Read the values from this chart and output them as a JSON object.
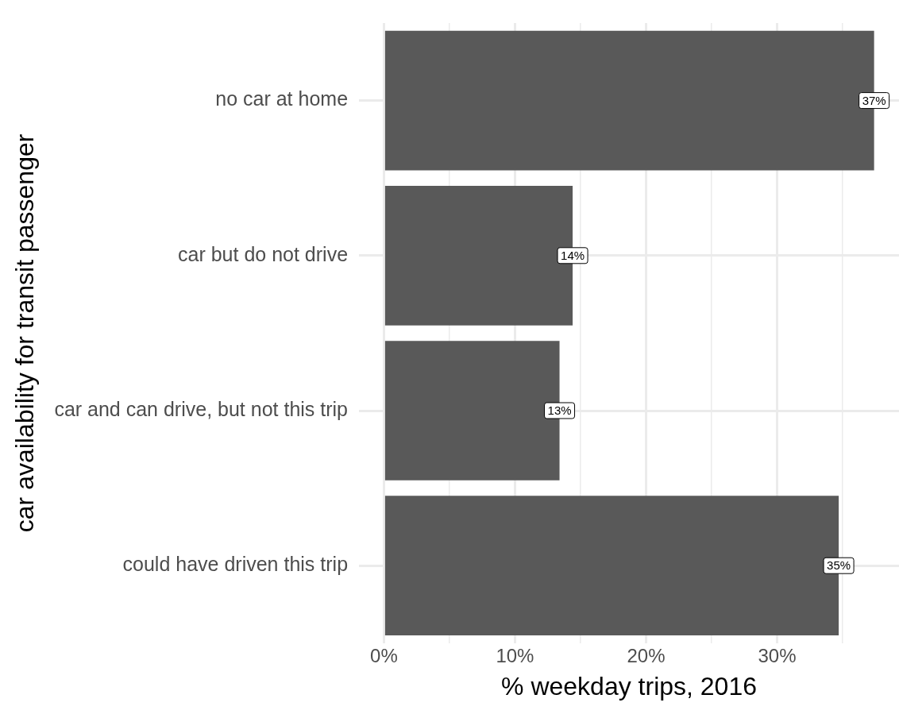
{
  "chart_data": {
    "type": "bar",
    "orientation": "horizontal",
    "xlabel": "% weekday trips, 2016",
    "ylabel": "car availability for transit passenger",
    "categories": [
      "no car at home",
      "car but do not drive",
      "car and can drive, but not this trip",
      "could have driven this trip"
    ],
    "values": [
      37.4,
      14.4,
      13.4,
      34.7
    ],
    "color": "#595959",
    "value_labels": [
      "37%",
      "14%",
      "13%",
      "35%"
    ],
    "xlim": [
      -1.9,
      39.3
    ],
    "xticks": [
      {
        "value": 0,
        "label": "0%"
      },
      {
        "value": 5,
        "label": null
      },
      {
        "value": 10,
        "label": "10%"
      },
      {
        "value": 15,
        "label": null
      },
      {
        "value": 20,
        "label": "20%"
      },
      {
        "value": 25,
        "label": null
      },
      {
        "value": 30,
        "label": "30%"
      },
      {
        "value": 35,
        "label": null
      }
    ],
    "grid": true,
    "legend": false
  }
}
